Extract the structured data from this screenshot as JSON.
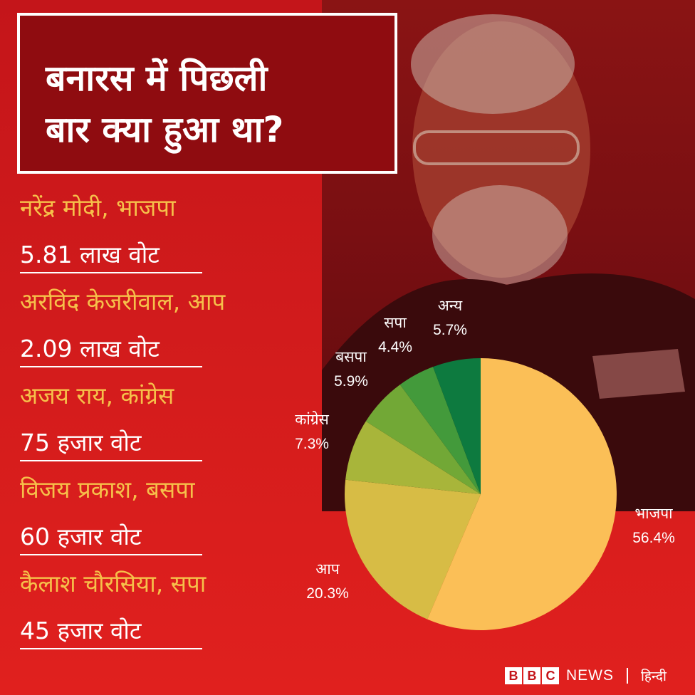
{
  "title": "बनारस में पिछली\nबार क्या हुआ था?",
  "results": [
    {
      "candidate": "नरेंद्र मोदी, भाजपा",
      "votes": "5.81 लाख वोट"
    },
    {
      "candidate": "अरविंद केजरीवाल, आप",
      "votes": "2.09 लाख वोट"
    },
    {
      "candidate": "अजय राय, कांग्रेस",
      "votes": "75 हजार वोट"
    },
    {
      "candidate": "विजय प्रकाश, बसपा",
      "votes": "60 हजार वोट"
    },
    {
      "candidate": "कैलाश चौरसिया, सपा",
      "votes": "45 हजार वोट"
    }
  ],
  "chart_data": {
    "type": "pie",
    "title": "",
    "slices": [
      {
        "label": "भाजपा",
        "value": 56.4,
        "value_label": "56.4%",
        "color": "#fbbf57"
      },
      {
        "label": "आप",
        "value": 20.3,
        "value_label": "20.3%",
        "color": "#d7bc45"
      },
      {
        "label": "कांग्रेस",
        "value": 7.3,
        "value_label": "7.3%",
        "color": "#a8b53a"
      },
      {
        "label": "बसपा",
        "value": 5.9,
        "value_label": "5.9%",
        "color": "#72a836"
      },
      {
        "label": "सपा",
        "value": 4.4,
        "value_label": "4.4%",
        "color": "#439a3b"
      },
      {
        "label": "अन्य",
        "value": 5.7,
        "value_label": "5.7%",
        "color": "#0d7a3f"
      }
    ]
  },
  "footer": {
    "brand_letters": [
      "B",
      "B",
      "C"
    ],
    "news": "NEWS",
    "language": "हिन्दी"
  },
  "colors": {
    "background": "#d41c1c",
    "candidate_text": "#f6c04a",
    "vote_text": "#ffffff"
  }
}
